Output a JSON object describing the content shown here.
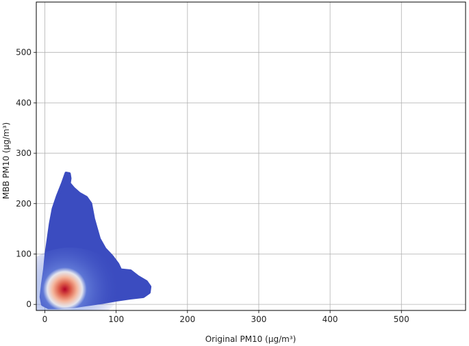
{
  "chart_data": {
    "type": "scatter",
    "subtype": "density-colored scatter (kernel density heatmap)",
    "title": "",
    "xlabel": "Original PM10 (μg/m³)",
    "ylabel": "MBB PM10 (μg/m³)",
    "xlim": [
      -12,
      590
    ],
    "ylim": [
      -12,
      600
    ],
    "xticks": [
      0,
      100,
      200,
      300,
      400,
      500
    ],
    "yticks": [
      0,
      100,
      200,
      300,
      400,
      500
    ],
    "grid": true,
    "colormap": "coolwarm",
    "colors": {
      "low_density": "#3b4cc0",
      "mid_density": "#f2f0f0",
      "high_density": "#b40426"
    },
    "density_peak": {
      "x": 28,
      "y": 30
    },
    "point_cloud_outline": [
      [
        30,
        260
      ],
      [
        34,
        259
      ],
      [
        35,
        250
      ],
      [
        34,
        240
      ],
      [
        40,
        230
      ],
      [
        48,
        220
      ],
      [
        58,
        212
      ],
      [
        64,
        200
      ],
      [
        66,
        185
      ],
      [
        68,
        170
      ],
      [
        72,
        150
      ],
      [
        76,
        130
      ],
      [
        84,
        110
      ],
      [
        94,
        95
      ],
      [
        102,
        80
      ],
      [
        106,
        68
      ],
      [
        120,
        66
      ],
      [
        130,
        55
      ],
      [
        142,
        45
      ],
      [
        147,
        35
      ],
      [
        146,
        24
      ],
      [
        138,
        16
      ],
      [
        120,
        13
      ],
      [
        100,
        9
      ],
      [
        80,
        4
      ],
      [
        60,
        0
      ],
      [
        40,
        -4
      ],
      [
        20,
        -6
      ],
      [
        5,
        -6
      ],
      [
        -3,
        0
      ],
      [
        -5,
        15
      ],
      [
        -3,
        40
      ],
      [
        0,
        70
      ],
      [
        2,
        100
      ],
      [
        5,
        130
      ],
      [
        8,
        160
      ],
      [
        12,
        190
      ],
      [
        18,
        215
      ],
      [
        25,
        240
      ],
      [
        28,
        252
      ]
    ]
  }
}
